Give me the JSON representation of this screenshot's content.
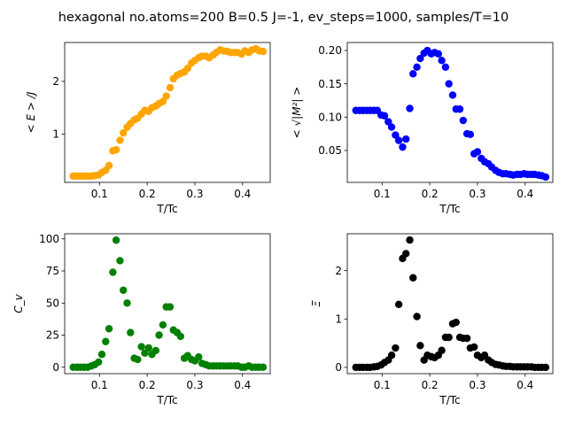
{
  "title": "hexagonal no.atoms=200  B=0.5 J=-1, ev_steps=1000, samples/T=10",
  "chart_data": [
    {
      "type": "scatter",
      "xlabel": "T/Tc",
      "ylabel": "< E > /J",
      "color": "#ffa500",
      "xlim": [
        0.027,
        0.458
      ],
      "ylim": [
        0.08,
        2.74
      ],
      "xticks": [
        0.1,
        0.2,
        0.3,
        0.4
      ],
      "xticklabels": [
        "0.1",
        "0.2",
        "0.3",
        "0.4"
      ],
      "yticks": [
        1,
        2
      ],
      "yticklabels": [
        "1",
        "2"
      ],
      "x": [
        0.045,
        0.053,
        0.06,
        0.068,
        0.075,
        0.083,
        0.09,
        0.098,
        0.105,
        0.113,
        0.12,
        0.128,
        0.135,
        0.143,
        0.15,
        0.158,
        0.165,
        0.173,
        0.18,
        0.188,
        0.195,
        0.203,
        0.21,
        0.218,
        0.225,
        0.233,
        0.24,
        0.248,
        0.255,
        0.263,
        0.27,
        0.278,
        0.285,
        0.293,
        0.3,
        0.308,
        0.315,
        0.323,
        0.33,
        0.338,
        0.345,
        0.353,
        0.36,
        0.368,
        0.375,
        0.383,
        0.39,
        0.398,
        0.405,
        0.413,
        0.42,
        0.428,
        0.435,
        0.443
      ],
      "y": [
        0.2,
        0.2,
        0.2,
        0.2,
        0.2,
        0.2,
        0.21,
        0.22,
        0.27,
        0.31,
        0.4,
        0.68,
        0.7,
        0.88,
        1.02,
        1.13,
        1.2,
        1.27,
        1.3,
        1.38,
        1.45,
        1.43,
        1.5,
        1.53,
        1.58,
        1.62,
        1.72,
        1.88,
        2.05,
        2.12,
        2.15,
        2.18,
        2.25,
        2.35,
        2.4,
        2.45,
        2.48,
        2.48,
        2.45,
        2.5,
        2.55,
        2.6,
        2.58,
        2.57,
        2.55,
        2.55,
        2.55,
        2.52,
        2.58,
        2.55,
        2.6,
        2.62,
        2.58,
        2.57
      ]
    },
    {
      "type": "scatter",
      "xlabel": "T/Tc",
      "ylabel": "< √|M²| >",
      "color": "#0000ff",
      "xlim": [
        0.027,
        0.458
      ],
      "ylim": [
        0.002,
        0.212
      ],
      "xticks": [
        0.1,
        0.2,
        0.3,
        0.4
      ],
      "xticklabels": [
        "0.1",
        "0.2",
        "0.3",
        "0.4"
      ],
      "yticks": [
        0.05,
        0.1,
        0.15,
        0.2
      ],
      "yticklabels": [
        "0.05",
        "0.10",
        "0.15",
        "0.20"
      ],
      "x": [
        0.045,
        0.053,
        0.06,
        0.068,
        0.075,
        0.083,
        0.09,
        0.098,
        0.105,
        0.113,
        0.12,
        0.128,
        0.135,
        0.143,
        0.15,
        0.158,
        0.165,
        0.173,
        0.18,
        0.188,
        0.195,
        0.203,
        0.21,
        0.218,
        0.225,
        0.233,
        0.24,
        0.248,
        0.255,
        0.263,
        0.27,
        0.278,
        0.285,
        0.293,
        0.3,
        0.308,
        0.315,
        0.323,
        0.33,
        0.338,
        0.345,
        0.353,
        0.36,
        0.368,
        0.375,
        0.383,
        0.39,
        0.398,
        0.405,
        0.413,
        0.42,
        0.428,
        0.435,
        0.443
      ],
      "y": [
        0.11,
        0.11,
        0.11,
        0.11,
        0.11,
        0.11,
        0.11,
        0.103,
        0.102,
        0.093,
        0.085,
        0.073,
        0.065,
        0.055,
        0.067,
        0.113,
        0.165,
        0.175,
        0.188,
        0.196,
        0.2,
        0.195,
        0.197,
        0.195,
        0.185,
        0.175,
        0.15,
        0.133,
        0.112,
        0.112,
        0.095,
        0.075,
        0.074,
        0.045,
        0.048,
        0.038,
        0.033,
        0.03,
        0.025,
        0.02,
        0.017,
        0.015,
        0.015,
        0.014,
        0.013,
        0.014,
        0.014,
        0.015,
        0.014,
        0.014,
        0.014,
        0.013,
        0.012,
        0.01
      ]
    },
    {
      "type": "scatter",
      "xlabel": "T/Tc",
      "ylabel": "C_v",
      "color": "#008000",
      "xlim": [
        0.027,
        0.458
      ],
      "ylim": [
        -5,
        104
      ],
      "xticks": [
        0.1,
        0.2,
        0.3,
        0.4
      ],
      "xticklabels": [
        "0.1",
        "0.2",
        "0.3",
        "0.4"
      ],
      "yticks": [
        0,
        25,
        50,
        75,
        100
      ],
      "yticklabels": [
        "0",
        "25",
        "50",
        "75",
        "100"
      ],
      "x": [
        0.045,
        0.053,
        0.06,
        0.068,
        0.075,
        0.083,
        0.09,
        0.098,
        0.105,
        0.113,
        0.12,
        0.128,
        0.135,
        0.143,
        0.15,
        0.158,
        0.165,
        0.173,
        0.18,
        0.188,
        0.195,
        0.203,
        0.21,
        0.218,
        0.225,
        0.233,
        0.24,
        0.248,
        0.255,
        0.263,
        0.27,
        0.278,
        0.285,
        0.293,
        0.3,
        0.308,
        0.315,
        0.323,
        0.33,
        0.338,
        0.345,
        0.353,
        0.36,
        0.368,
        0.375,
        0.383,
        0.39,
        0.398,
        0.405,
        0.413,
        0.42,
        0.428,
        0.435,
        0.443
      ],
      "y": [
        0,
        0,
        0,
        0,
        0,
        1,
        2,
        4,
        10,
        20,
        30,
        74,
        99,
        83,
        60,
        50,
        27,
        7,
        6,
        16,
        11,
        15,
        10,
        13,
        25,
        33,
        47,
        47,
        29,
        27,
        24,
        7,
        9,
        6,
        5,
        8,
        3,
        2,
        1,
        1,
        1,
        1,
        1,
        1,
        1,
        1,
        1,
        0,
        0,
        1,
        0,
        0,
        0,
        0
      ]
    },
    {
      "type": "scatter",
      "xlabel": "T/Tc",
      "ylabel": "Ξ",
      "color": "#000000",
      "xlim": [
        0.027,
        0.458
      ],
      "ylim": [
        -0.13,
        2.76
      ],
      "xticks": [
        0.1,
        0.2,
        0.3,
        0.4
      ],
      "xticklabels": [
        "0.1",
        "0.2",
        "0.3",
        "0.4"
      ],
      "yticks": [
        0,
        1,
        2
      ],
      "yticklabels": [
        "0",
        "1",
        "2"
      ],
      "x": [
        0.045,
        0.053,
        0.06,
        0.068,
        0.075,
        0.083,
        0.09,
        0.098,
        0.105,
        0.113,
        0.12,
        0.128,
        0.135,
        0.143,
        0.15,
        0.158,
        0.165,
        0.173,
        0.18,
        0.188,
        0.195,
        0.203,
        0.21,
        0.218,
        0.225,
        0.233,
        0.24,
        0.248,
        0.255,
        0.263,
        0.27,
        0.278,
        0.285,
        0.293,
        0.3,
        0.308,
        0.315,
        0.323,
        0.33,
        0.338,
        0.345,
        0.353,
        0.36,
        0.368,
        0.375,
        0.383,
        0.39,
        0.398,
        0.405,
        0.413,
        0.42,
        0.428,
        0.435,
        0.443
      ],
      "y": [
        0,
        0,
        0,
        0,
        0,
        0.01,
        0.02,
        0.05,
        0.1,
        0.15,
        0.25,
        0.4,
        1.3,
        2.25,
        2.35,
        2.63,
        1.85,
        1.05,
        0.45,
        0.15,
        0.25,
        0.22,
        0.2,
        0.25,
        0.35,
        0.62,
        0.62,
        0.9,
        0.93,
        0.62,
        0.6,
        0.6,
        0.4,
        0.42,
        0.25,
        0.2,
        0.25,
        0.15,
        0.1,
        0.06,
        0.05,
        0.03,
        0.02,
        0.02,
        0.01,
        0.01,
        0.01,
        0.01,
        0.01,
        0.01,
        0,
        0,
        0,
        0
      ]
    }
  ]
}
